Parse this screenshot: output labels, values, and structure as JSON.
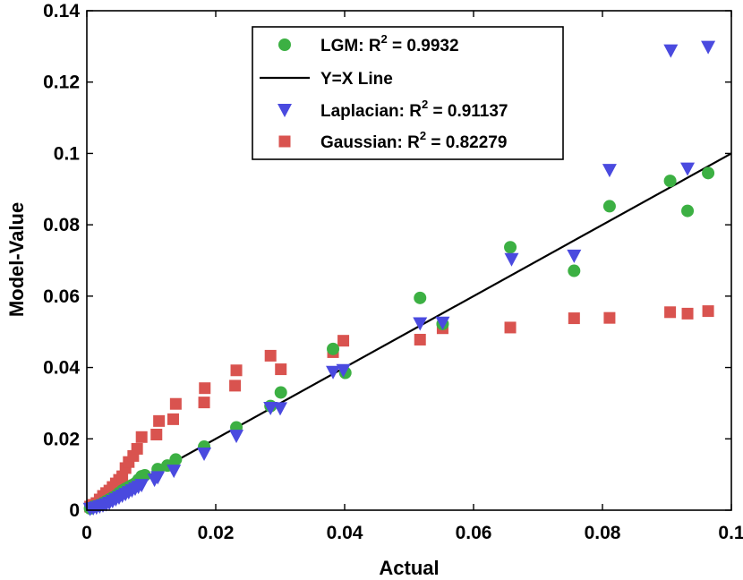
{
  "chart_data": {
    "type": "scatter",
    "title": "",
    "xlabel": "Actual",
    "ylabel": "Model-Value",
    "xlim": [
      0,
      0.1
    ],
    "ylim": [
      0,
      0.14
    ],
    "x_ticks": [
      "0",
      "0.02",
      "0.04",
      "0.06",
      "0.08",
      "0.1"
    ],
    "y_ticks": [
      "0",
      "0.02",
      "0.04",
      "0.06",
      "0.08",
      "0.1",
      "0.12",
      "0.14"
    ],
    "x_tick_values": [
      0,
      0.02,
      0.04,
      0.06,
      0.08,
      0.1
    ],
    "y_tick_values": [
      0,
      0.02,
      0.04,
      0.06,
      0.08,
      0.1,
      0.12,
      0.14
    ],
    "grid": false,
    "legend_position": "top-right",
    "reference_line": {
      "name": "Y=X Line",
      "legend_label": "Y=X Line",
      "color": "#000000",
      "points": [
        [
          0,
          0
        ],
        [
          0.1,
          0.1
        ]
      ]
    },
    "series": [
      {
        "name": "LGM",
        "legend_label": "LGM: R",
        "r_squared": "0.9932",
        "marker": "circle",
        "color": "#3cb043",
        "points": [
          [
            0.0005,
            0.0005
          ],
          [
            0.001,
            0.001
          ],
          [
            0.0015,
            0.0012
          ],
          [
            0.002,
            0.0015
          ],
          [
            0.0025,
            0.002
          ],
          [
            0.003,
            0.0025
          ],
          [
            0.0035,
            0.003
          ],
          [
            0.004,
            0.0035
          ],
          [
            0.0045,
            0.004
          ],
          [
            0.005,
            0.0048
          ],
          [
            0.0055,
            0.0055
          ],
          [
            0.006,
            0.006
          ],
          [
            0.0065,
            0.0065
          ],
          [
            0.007,
            0.007
          ],
          [
            0.0075,
            0.0075
          ],
          [
            0.008,
            0.0085
          ],
          [
            0.0085,
            0.0095
          ],
          [
            0.009,
            0.0098
          ],
          [
            0.011,
            0.0115
          ],
          [
            0.0125,
            0.0125
          ],
          [
            0.0138,
            0.0142
          ],
          [
            0.0182,
            0.0178
          ],
          [
            0.0232,
            0.0232
          ],
          [
            0.0285,
            0.0292
          ],
          [
            0.0301,
            0.033
          ],
          [
            0.0382,
            0.0452
          ],
          [
            0.0401,
            0.0385
          ],
          [
            0.0517,
            0.0595
          ],
          [
            0.0552,
            0.0522
          ],
          [
            0.0657,
            0.0737
          ],
          [
            0.0756,
            0.0671
          ],
          [
            0.0811,
            0.0852
          ],
          [
            0.0905,
            0.0923
          ],
          [
            0.0932,
            0.0839
          ],
          [
            0.0964,
            0.0945
          ]
        ]
      },
      {
        "name": "Laplacian",
        "legend_label": "Laplacian: R",
        "r_squared": "0.91137",
        "marker": "triangle-down",
        "color": "#4a4adf",
        "points": [
          [
            0.0005,
            0.0003
          ],
          [
            0.001,
            0.0005
          ],
          [
            0.0015,
            0.0007
          ],
          [
            0.002,
            0.001
          ],
          [
            0.0025,
            0.0013
          ],
          [
            0.003,
            0.0016
          ],
          [
            0.0035,
            0.002
          ],
          [
            0.004,
            0.0025
          ],
          [
            0.0045,
            0.003
          ],
          [
            0.005,
            0.0035
          ],
          [
            0.0055,
            0.004
          ],
          [
            0.006,
            0.0045
          ],
          [
            0.0065,
            0.005
          ],
          [
            0.007,
            0.0055
          ],
          [
            0.0075,
            0.006
          ],
          [
            0.008,
            0.0065
          ],
          [
            0.0085,
            0.007
          ],
          [
            0.0105,
            0.0085
          ],
          [
            0.011,
            0.0092
          ],
          [
            0.0135,
            0.011
          ],
          [
            0.0182,
            0.0158
          ],
          [
            0.0232,
            0.0208
          ],
          [
            0.0285,
            0.0286
          ],
          [
            0.03,
            0.0285
          ],
          [
            0.0382,
            0.0387
          ],
          [
            0.0398,
            0.0392
          ],
          [
            0.0517,
            0.0523
          ],
          [
            0.0552,
            0.0525
          ],
          [
            0.0659,
            0.0703
          ],
          [
            0.0756,
            0.0713
          ],
          [
            0.0811,
            0.0953
          ],
          [
            0.0906,
            0.1288
          ],
          [
            0.0932,
            0.0957
          ],
          [
            0.0964,
            0.1298
          ]
        ]
      },
      {
        "name": "Gaussian",
        "legend_label": "Gaussian: R",
        "r_squared": "0.82279",
        "marker": "square",
        "color": "#d9534f",
        "points": [
          [
            0.0005,
            0.001
          ],
          [
            0.001,
            0.0015
          ],
          [
            0.0015,
            0.002
          ],
          [
            0.002,
            0.003
          ],
          [
            0.0025,
            0.004
          ],
          [
            0.003,
            0.0048
          ],
          [
            0.0035,
            0.0055
          ],
          [
            0.004,
            0.0065
          ],
          [
            0.0045,
            0.0075
          ],
          [
            0.005,
            0.0085
          ],
          [
            0.0055,
            0.0095
          ],
          [
            0.006,
            0.0118
          ],
          [
            0.0065,
            0.0135
          ],
          [
            0.0072,
            0.0152
          ],
          [
            0.0078,
            0.0172
          ],
          [
            0.0085,
            0.0205
          ],
          [
            0.0108,
            0.0212
          ],
          [
            0.0112,
            0.025
          ],
          [
            0.0134,
            0.0255
          ],
          [
            0.0138,
            0.0298
          ],
          [
            0.0182,
            0.0302
          ],
          [
            0.0183,
            0.0342
          ],
          [
            0.023,
            0.0349
          ],
          [
            0.0232,
            0.0392
          ],
          [
            0.0285,
            0.0433
          ],
          [
            0.0301,
            0.0395
          ],
          [
            0.0382,
            0.0443
          ],
          [
            0.0398,
            0.0475
          ],
          [
            0.0517,
            0.0478
          ],
          [
            0.0552,
            0.051
          ],
          [
            0.0657,
            0.0512
          ],
          [
            0.0756,
            0.0538
          ],
          [
            0.0811,
            0.0539
          ],
          [
            0.0905,
            0.0555
          ],
          [
            0.0932,
            0.0551
          ],
          [
            0.0964,
            0.0558
          ]
        ]
      }
    ]
  }
}
